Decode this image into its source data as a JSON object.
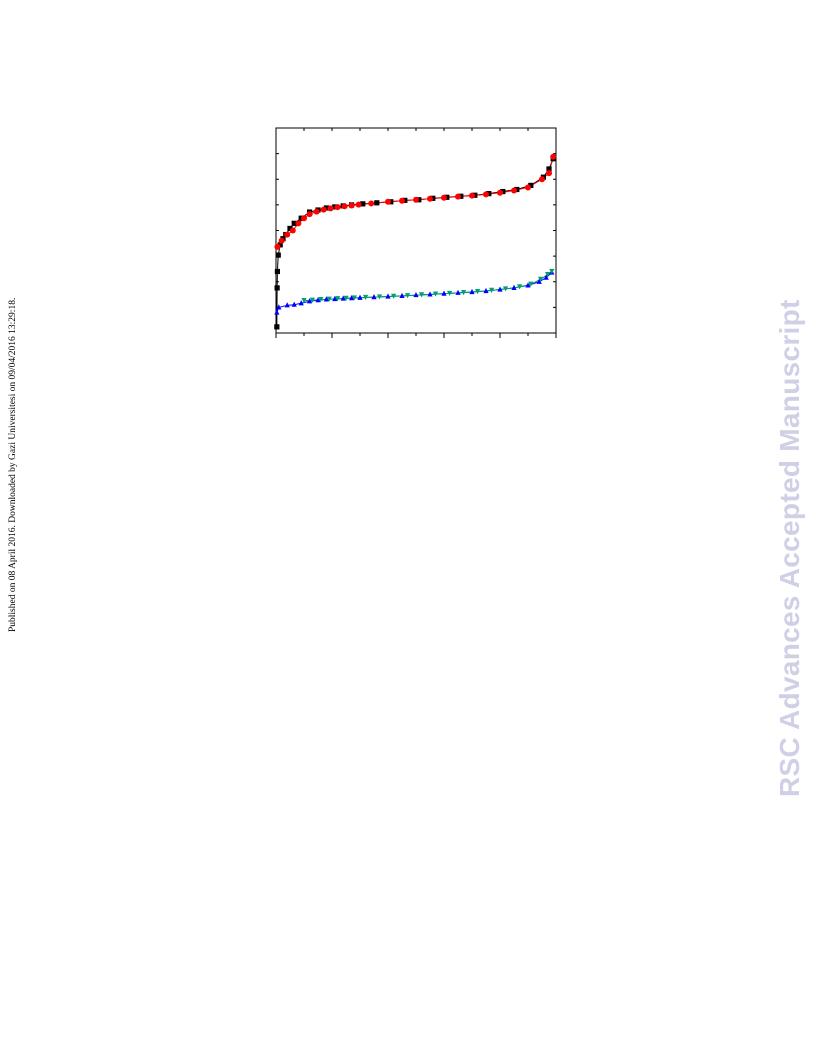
{
  "page": {
    "side_note": "Published on 08 April 2016. Downloaded by Gazi Universitesi on 09/04/2016 13:29:18.",
    "watermark": "RSC Advances Accepted Manuscript"
  },
  "chart_data": {
    "type": "line",
    "title": "",
    "xlabel": "",
    "ylabel": "",
    "xlim": [
      0,
      1
    ],
    "ylim": [
      0,
      1
    ],
    "grid": false,
    "legend": "none",
    "series": [
      {
        "color": "#000000",
        "marker": "square",
        "points": [
          [
            0.003,
            0.03
          ],
          [
            0.004,
            0.22
          ],
          [
            0.005,
            0.3
          ],
          [
            0.008,
            0.38
          ],
          [
            0.015,
            0.43
          ],
          [
            0.025,
            0.46
          ],
          [
            0.035,
            0.48
          ],
          [
            0.05,
            0.51
          ],
          [
            0.065,
            0.535
          ],
          [
            0.09,
            0.56
          ],
          [
            0.12,
            0.59
          ],
          [
            0.15,
            0.6
          ],
          [
            0.18,
            0.61
          ],
          [
            0.21,
            0.615
          ],
          [
            0.24,
            0.62
          ],
          [
            0.27,
            0.625
          ],
          [
            0.31,
            0.63
          ],
          [
            0.36,
            0.635
          ],
          [
            0.41,
            0.64
          ],
          [
            0.46,
            0.647
          ],
          [
            0.51,
            0.65
          ],
          [
            0.56,
            0.657
          ],
          [
            0.61,
            0.662
          ],
          [
            0.66,
            0.667
          ],
          [
            0.71,
            0.672
          ],
          [
            0.76,
            0.68
          ],
          [
            0.81,
            0.69
          ],
          [
            0.86,
            0.7
          ],
          [
            0.91,
            0.72
          ],
          [
            0.955,
            0.76
          ],
          [
            0.975,
            0.8
          ],
          [
            0.99,
            0.85
          ]
        ]
      },
      {
        "color": "#ff0000",
        "marker": "circle",
        "points": [
          [
            0.005,
            0.42
          ],
          [
            0.02,
            0.45
          ],
          [
            0.04,
            0.48
          ],
          [
            0.06,
            0.5
          ],
          [
            0.08,
            0.535
          ],
          [
            0.1,
            0.56
          ],
          [
            0.12,
            0.58
          ],
          [
            0.145,
            0.592
          ],
          [
            0.17,
            0.602
          ],
          [
            0.195,
            0.608
          ],
          [
            0.22,
            0.614
          ],
          [
            0.245,
            0.618
          ],
          [
            0.27,
            0.622
          ],
          [
            0.295,
            0.626
          ],
          [
            0.34,
            0.632
          ],
          [
            0.4,
            0.64
          ],
          [
            0.45,
            0.645
          ],
          [
            0.5,
            0.65
          ],
          [
            0.55,
            0.655
          ],
          [
            0.6,
            0.66
          ],
          [
            0.65,
            0.665
          ],
          [
            0.7,
            0.67
          ],
          [
            0.75,
            0.676
          ],
          [
            0.8,
            0.684
          ],
          [
            0.85,
            0.695
          ],
          [
            0.9,
            0.71
          ],
          [
            0.95,
            0.75
          ],
          [
            0.975,
            0.78
          ],
          [
            0.99,
            0.86
          ]
        ]
      },
      {
        "color": "#0000ff",
        "marker": "triangle",
        "points": [
          [
            0.003,
            0.1
          ],
          [
            0.01,
            0.125
          ],
          [
            0.04,
            0.135
          ],
          [
            0.065,
            0.138
          ],
          [
            0.09,
            0.145
          ],
          [
            0.12,
            0.155
          ],
          [
            0.15,
            0.16
          ],
          [
            0.18,
            0.164
          ],
          [
            0.21,
            0.166
          ],
          [
            0.24,
            0.168
          ],
          [
            0.27,
            0.17
          ],
          [
            0.3,
            0.172
          ],
          [
            0.35,
            0.175
          ],
          [
            0.4,
            0.178
          ],
          [
            0.45,
            0.181
          ],
          [
            0.5,
            0.185
          ],
          [
            0.55,
            0.188
          ],
          [
            0.6,
            0.192
          ],
          [
            0.65,
            0.196
          ],
          [
            0.7,
            0.2
          ],
          [
            0.75,
            0.205
          ],
          [
            0.8,
            0.212
          ],
          [
            0.85,
            0.22
          ],
          [
            0.9,
            0.232
          ],
          [
            0.94,
            0.25
          ],
          [
            0.965,
            0.27
          ],
          [
            0.985,
            0.295
          ]
        ]
      },
      {
        "color": "#00a070",
        "marker": "triangle-down",
        "points": [
          [
            0.1,
            0.158
          ],
          [
            0.13,
            0.16
          ],
          [
            0.16,
            0.163
          ],
          [
            0.19,
            0.165
          ],
          [
            0.22,
            0.167
          ],
          [
            0.25,
            0.169
          ],
          [
            0.28,
            0.171
          ],
          [
            0.32,
            0.173
          ],
          [
            0.37,
            0.176
          ],
          [
            0.42,
            0.179
          ],
          [
            0.47,
            0.182
          ],
          [
            0.52,
            0.186
          ],
          [
            0.57,
            0.19
          ],
          [
            0.62,
            0.193
          ],
          [
            0.67,
            0.197
          ],
          [
            0.72,
            0.202
          ],
          [
            0.77,
            0.208
          ],
          [
            0.82,
            0.215
          ],
          [
            0.87,
            0.225
          ],
          [
            0.91,
            0.238
          ],
          [
            0.945,
            0.262
          ],
          [
            0.97,
            0.285
          ],
          [
            0.985,
            0.3
          ]
        ]
      }
    ]
  }
}
